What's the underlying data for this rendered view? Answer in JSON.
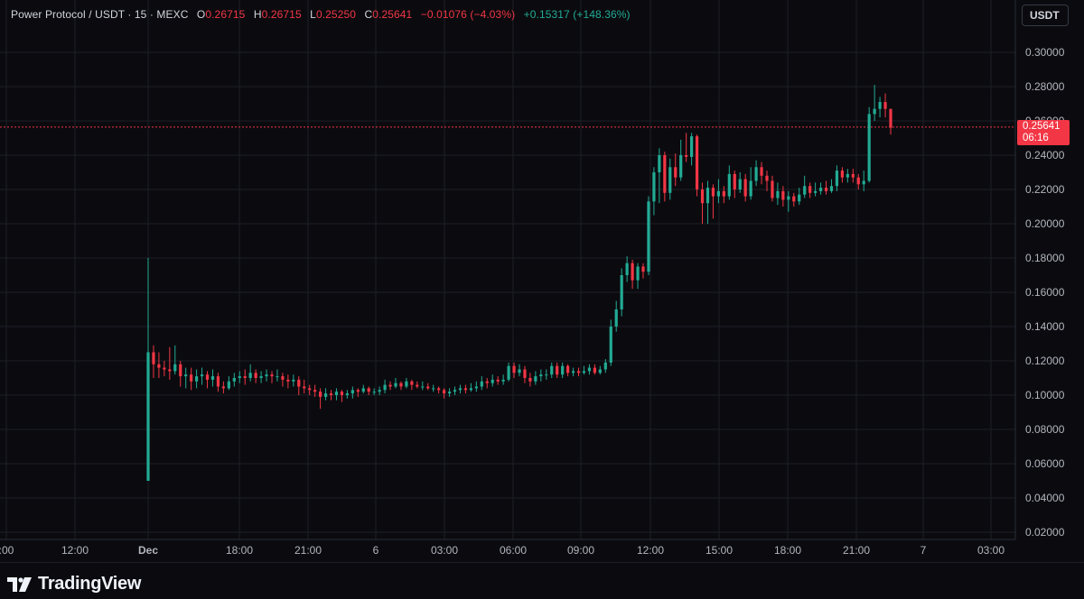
{
  "header": {
    "symbol": "Power Protocol / USDT · 15 · MEXC",
    "o_label": "O",
    "o_value": "0.26715",
    "h_label": "H",
    "h_value": "0.26715",
    "l_label": "L",
    "l_value": "0.25250",
    "c_label": "C",
    "c_value": "0.25641",
    "change": "−0.01076 (−4.03%)",
    "change2": "+0.15317 (+148.36%)"
  },
  "currency_button": "USDT",
  "last_price": {
    "value": "0.25641",
    "countdown": "06:16"
  },
  "brand": "TradingView",
  "colors": {
    "up": "#22ab94",
    "down": "#f23645",
    "background": "#0b0b0f"
  },
  "chart_data": {
    "type": "candlestick",
    "y_ticks": [
      "0.30000",
      "0.28000",
      "0.26000",
      "0.24000",
      "0.22000",
      "0.20000",
      "0.18000",
      "0.16000",
      "0.14000",
      "0.12000",
      "0.10000",
      "0.08000",
      "0.06000",
      "0.04000",
      "0.02000"
    ],
    "ylim": [
      0.02,
      0.3
    ],
    "x_ticks": [
      ":00",
      "12:00",
      "Dec",
      "18:00",
      "21:00",
      "6",
      "03:00",
      "06:00",
      "09:00",
      "12:00",
      "15:00",
      "18:00",
      "21:00",
      "7",
      "03:00"
    ],
    "last_price": 0.25641,
    "grid": true,
    "candles": [
      [
        0.05,
        0.125,
        0.18,
        0.05
      ],
      [
        0.125,
        0.118,
        0.129,
        0.11
      ],
      [
        0.118,
        0.116,
        0.125,
        0.11
      ],
      [
        0.116,
        0.115,
        0.12,
        0.111
      ],
      [
        0.115,
        0.114,
        0.128,
        0.109
      ],
      [
        0.114,
        0.118,
        0.129,
        0.112
      ],
      [
        0.118,
        0.111,
        0.12,
        0.105
      ],
      [
        0.111,
        0.112,
        0.116,
        0.104
      ],
      [
        0.112,
        0.108,
        0.116,
        0.103
      ],
      [
        0.108,
        0.111,
        0.115,
        0.104
      ],
      [
        0.111,
        0.112,
        0.116,
        0.106
      ],
      [
        0.112,
        0.109,
        0.114,
        0.104
      ],
      [
        0.109,
        0.111,
        0.115,
        0.105
      ],
      [
        0.111,
        0.105,
        0.113,
        0.102
      ],
      [
        0.105,
        0.104,
        0.108,
        0.101
      ],
      [
        0.104,
        0.108,
        0.111,
        0.103
      ],
      [
        0.108,
        0.11,
        0.113,
        0.105
      ],
      [
        0.11,
        0.111,
        0.114,
        0.107
      ],
      [
        0.111,
        0.11,
        0.115,
        0.106
      ],
      [
        0.11,
        0.113,
        0.118,
        0.108
      ],
      [
        0.113,
        0.11,
        0.115,
        0.107
      ],
      [
        0.11,
        0.111,
        0.114,
        0.107
      ],
      [
        0.111,
        0.112,
        0.115,
        0.108
      ],
      [
        0.112,
        0.111,
        0.114,
        0.107
      ],
      [
        0.111,
        0.111,
        0.115,
        0.108
      ],
      [
        0.111,
        0.109,
        0.113,
        0.105
      ],
      [
        0.109,
        0.108,
        0.112,
        0.104
      ],
      [
        0.108,
        0.109,
        0.112,
        0.105
      ],
      [
        0.109,
        0.105,
        0.111,
        0.1
      ],
      [
        0.105,
        0.104,
        0.109,
        0.101
      ],
      [
        0.104,
        0.103,
        0.106,
        0.1
      ],
      [
        0.103,
        0.102,
        0.106,
        0.099
      ],
      [
        0.102,
        0.099,
        0.104,
        0.092
      ],
      [
        0.099,
        0.101,
        0.104,
        0.097
      ],
      [
        0.101,
        0.1,
        0.103,
        0.097
      ],
      [
        0.1,
        0.102,
        0.104,
        0.097
      ],
      [
        0.102,
        0.1,
        0.103,
        0.096
      ],
      [
        0.1,
        0.101,
        0.103,
        0.098
      ],
      [
        0.101,
        0.103,
        0.105,
        0.098
      ],
      [
        0.103,
        0.102,
        0.104,
        0.099
      ],
      [
        0.102,
        0.104,
        0.106,
        0.101
      ],
      [
        0.104,
        0.102,
        0.105,
        0.1
      ],
      [
        0.102,
        0.102,
        0.104,
        0.1
      ],
      [
        0.102,
        0.103,
        0.105,
        0.1
      ],
      [
        0.103,
        0.106,
        0.109,
        0.101
      ],
      [
        0.106,
        0.105,
        0.108,
        0.103
      ],
      [
        0.105,
        0.107,
        0.11,
        0.104
      ],
      [
        0.107,
        0.105,
        0.108,
        0.103
      ],
      [
        0.105,
        0.108,
        0.11,
        0.104
      ],
      [
        0.108,
        0.106,
        0.109,
        0.103
      ],
      [
        0.106,
        0.105,
        0.108,
        0.104
      ],
      [
        0.105,
        0.105,
        0.108,
        0.103
      ],
      [
        0.105,
        0.104,
        0.107,
        0.103
      ],
      [
        0.104,
        0.104,
        0.106,
        0.102
      ],
      [
        0.104,
        0.103,
        0.105,
        0.101
      ],
      [
        0.103,
        0.101,
        0.104,
        0.098
      ],
      [
        0.101,
        0.102,
        0.104,
        0.099
      ],
      [
        0.102,
        0.103,
        0.105,
        0.1
      ],
      [
        0.103,
        0.104,
        0.106,
        0.101
      ],
      [
        0.104,
        0.103,
        0.106,
        0.101
      ],
      [
        0.103,
        0.104,
        0.107,
        0.102
      ],
      [
        0.104,
        0.105,
        0.108,
        0.102
      ],
      [
        0.105,
        0.108,
        0.111,
        0.103
      ],
      [
        0.108,
        0.107,
        0.11,
        0.104
      ],
      [
        0.107,
        0.109,
        0.112,
        0.105
      ],
      [
        0.109,
        0.108,
        0.111,
        0.106
      ],
      [
        0.108,
        0.109,
        0.112,
        0.106
      ],
      [
        0.109,
        0.117,
        0.119,
        0.108
      ],
      [
        0.117,
        0.113,
        0.119,
        0.11
      ],
      [
        0.113,
        0.115,
        0.118,
        0.111
      ],
      [
        0.115,
        0.11,
        0.117,
        0.107
      ],
      [
        0.11,
        0.108,
        0.113,
        0.105
      ],
      [
        0.108,
        0.111,
        0.114,
        0.106
      ],
      [
        0.111,
        0.112,
        0.115,
        0.108
      ],
      [
        0.112,
        0.112,
        0.115,
        0.109
      ],
      [
        0.112,
        0.117,
        0.119,
        0.11
      ],
      [
        0.117,
        0.112,
        0.119,
        0.11
      ],
      [
        0.112,
        0.117,
        0.119,
        0.11
      ],
      [
        0.117,
        0.113,
        0.118,
        0.111
      ],
      [
        0.113,
        0.114,
        0.116,
        0.111
      ],
      [
        0.114,
        0.113,
        0.116,
        0.111
      ],
      [
        0.113,
        0.114,
        0.117,
        0.112
      ],
      [
        0.114,
        0.116,
        0.118,
        0.112
      ],
      [
        0.116,
        0.113,
        0.118,
        0.112
      ],
      [
        0.113,
        0.115,
        0.117,
        0.112
      ],
      [
        0.115,
        0.119,
        0.121,
        0.113
      ],
      [
        0.119,
        0.14,
        0.144,
        0.117
      ],
      [
        0.14,
        0.15,
        0.155,
        0.137
      ],
      [
        0.15,
        0.17,
        0.174,
        0.146
      ],
      [
        0.17,
        0.177,
        0.181,
        0.166
      ],
      [
        0.177,
        0.167,
        0.179,
        0.162
      ],
      [
        0.167,
        0.175,
        0.177,
        0.162
      ],
      [
        0.175,
        0.172,
        0.177,
        0.168
      ],
      [
        0.172,
        0.213,
        0.216,
        0.17
      ],
      [
        0.213,
        0.23,
        0.233,
        0.205
      ],
      [
        0.23,
        0.24,
        0.244,
        0.212
      ],
      [
        0.24,
        0.218,
        0.242,
        0.213
      ],
      [
        0.218,
        0.233,
        0.238,
        0.214
      ],
      [
        0.233,
        0.227,
        0.241,
        0.222
      ],
      [
        0.227,
        0.24,
        0.249,
        0.225
      ],
      [
        0.24,
        0.239,
        0.253,
        0.236
      ],
      [
        0.239,
        0.251,
        0.253,
        0.234
      ],
      [
        0.251,
        0.22,
        0.252,
        0.216
      ],
      [
        0.22,
        0.212,
        0.224,
        0.2
      ],
      [
        0.212,
        0.221,
        0.225,
        0.2
      ],
      [
        0.221,
        0.216,
        0.223,
        0.203
      ],
      [
        0.216,
        0.219,
        0.226,
        0.212
      ],
      [
        0.219,
        0.216,
        0.222,
        0.212
      ],
      [
        0.216,
        0.229,
        0.234,
        0.214
      ],
      [
        0.229,
        0.22,
        0.231,
        0.215
      ],
      [
        0.22,
        0.226,
        0.23,
        0.218
      ],
      [
        0.226,
        0.216,
        0.229,
        0.213
      ],
      [
        0.216,
        0.225,
        0.233,
        0.214
      ],
      [
        0.225,
        0.233,
        0.237,
        0.222
      ],
      [
        0.233,
        0.228,
        0.236,
        0.223
      ],
      [
        0.228,
        0.225,
        0.231,
        0.219
      ],
      [
        0.225,
        0.215,
        0.228,
        0.213
      ],
      [
        0.215,
        0.219,
        0.224,
        0.211
      ],
      [
        0.219,
        0.214,
        0.222,
        0.21
      ],
      [
        0.214,
        0.216,
        0.219,
        0.207
      ],
      [
        0.216,
        0.213,
        0.218,
        0.21
      ],
      [
        0.213,
        0.217,
        0.221,
        0.211
      ],
      [
        0.217,
        0.222,
        0.228,
        0.215
      ],
      [
        0.222,
        0.218,
        0.224,
        0.215
      ],
      [
        0.218,
        0.219,
        0.224,
        0.216
      ],
      [
        0.219,
        0.221,
        0.224,
        0.217
      ],
      [
        0.221,
        0.219,
        0.225,
        0.217
      ],
      [
        0.219,
        0.222,
        0.226,
        0.218
      ],
      [
        0.222,
        0.231,
        0.234,
        0.219
      ],
      [
        0.231,
        0.227,
        0.233,
        0.224
      ],
      [
        0.227,
        0.229,
        0.232,
        0.224
      ],
      [
        0.229,
        0.227,
        0.232,
        0.224
      ],
      [
        0.227,
        0.223,
        0.229,
        0.22
      ],
      [
        0.223,
        0.225,
        0.231,
        0.219
      ],
      [
        0.225,
        0.264,
        0.268,
        0.224
      ],
      [
        0.264,
        0.267,
        0.281,
        0.26
      ],
      [
        0.267,
        0.271,
        0.274,
        0.262
      ],
      [
        0.271,
        0.267,
        0.276,
        0.262
      ],
      [
        0.267,
        0.256,
        0.267,
        0.252
      ]
    ]
  }
}
